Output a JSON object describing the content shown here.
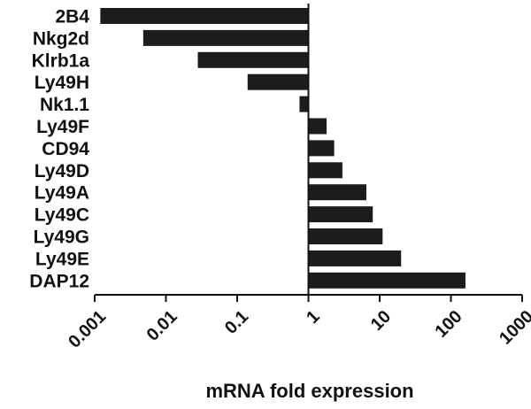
{
  "chart_data": {
    "type": "bar",
    "orientation": "horizontal",
    "categories": [
      "2B4",
      "Nkg2d",
      "Klrb1a",
      "Ly49H",
      "Nk1.1",
      "Ly49F",
      "CD94",
      "Ly49D",
      "Ly49A",
      "Ly49C",
      "Ly49G",
      "Ly49E",
      "DAP12"
    ],
    "values": [
      0.0012,
      0.0048,
      0.028,
      0.14,
      0.75,
      1.8,
      2.3,
      3.0,
      6.5,
      8.0,
      11,
      20,
      160
    ],
    "baseline": 1,
    "xscale": "log",
    "xlim": [
      0.001,
      1000
    ],
    "xticks": [
      "0.001",
      "0.01",
      "0.1",
      "1",
      "10",
      "100",
      "1000"
    ],
    "xtick_values": [
      0.001,
      0.01,
      0.1,
      1,
      10,
      100,
      1000
    ],
    "title": "",
    "xlabel": "mRNA fold expression",
    "ylabel": "",
    "grid": false,
    "legend": "none",
    "bar_color": "#1c1c1c",
    "axis_color": "#111111"
  }
}
